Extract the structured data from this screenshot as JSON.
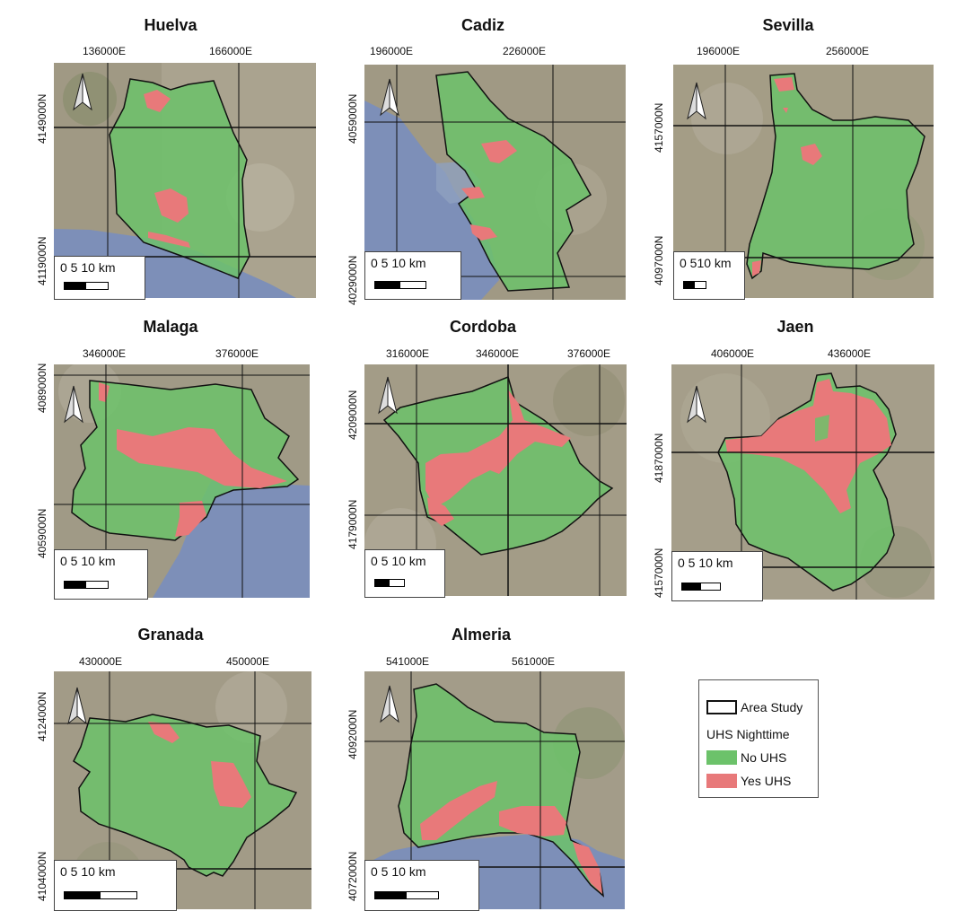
{
  "maps": [
    {
      "key": "huelva",
      "title": "Huelva",
      "easting": [
        "136000E",
        "166000E"
      ],
      "northing": [
        "4149000N",
        "4119000N"
      ],
      "scale": "0  5  10 km"
    },
    {
      "key": "cadiz",
      "title": "Cadiz",
      "easting": [
        "196000E",
        "226000E"
      ],
      "northing": [
        "4059000N",
        "4029000N"
      ],
      "scale": "0  5  10 km"
    },
    {
      "key": "sevilla",
      "title": "Sevilla",
      "easting": [
        "196000E",
        "256000E"
      ],
      "northing": [
        "4157000N",
        "4097000N"
      ],
      "scale": "0 510 km"
    },
    {
      "key": "malaga",
      "title": "Malaga",
      "easting": [
        "346000E",
        "376000E"
      ],
      "northing": [
        "4089000N",
        "4059000N"
      ],
      "scale": "0  5  10 km"
    },
    {
      "key": "cordoba",
      "title": "Cordoba",
      "easting": [
        "316000E",
        "346000E",
        "376000E"
      ],
      "northing": [
        "4209000N",
        "4179000N"
      ],
      "scale": "0 5 10 km"
    },
    {
      "key": "jaen",
      "title": "Jaen",
      "easting": [
        "406000E",
        "436000E"
      ],
      "northing": [
        "4187000N",
        "4157000N"
      ],
      "scale": "0  5  10 km"
    },
    {
      "key": "granada",
      "title": "Granada",
      "easting": [
        "430000E",
        "450000E"
      ],
      "northing": [
        "4124000N",
        "4104000N"
      ],
      "scale": "0     5     10 km"
    },
    {
      "key": "almeria",
      "title": "Almeria",
      "easting": [
        "541000E",
        "561000E"
      ],
      "northing": [
        "4092000N",
        "4072000N"
      ],
      "scale": "0    5    10 km"
    }
  ],
  "legend": {
    "area_study": "Area Study",
    "heading": "UHS Nighttime",
    "no_uhs": "No UHS",
    "yes_uhs": "Yes UHS"
  },
  "colors": {
    "no_uhs": "#6cc26a",
    "yes_uhs": "#e8797a",
    "sea": "#7d8fb8",
    "land": "#9b9580"
  },
  "icons": {
    "north_arrow": "north-arrow-icon"
  }
}
